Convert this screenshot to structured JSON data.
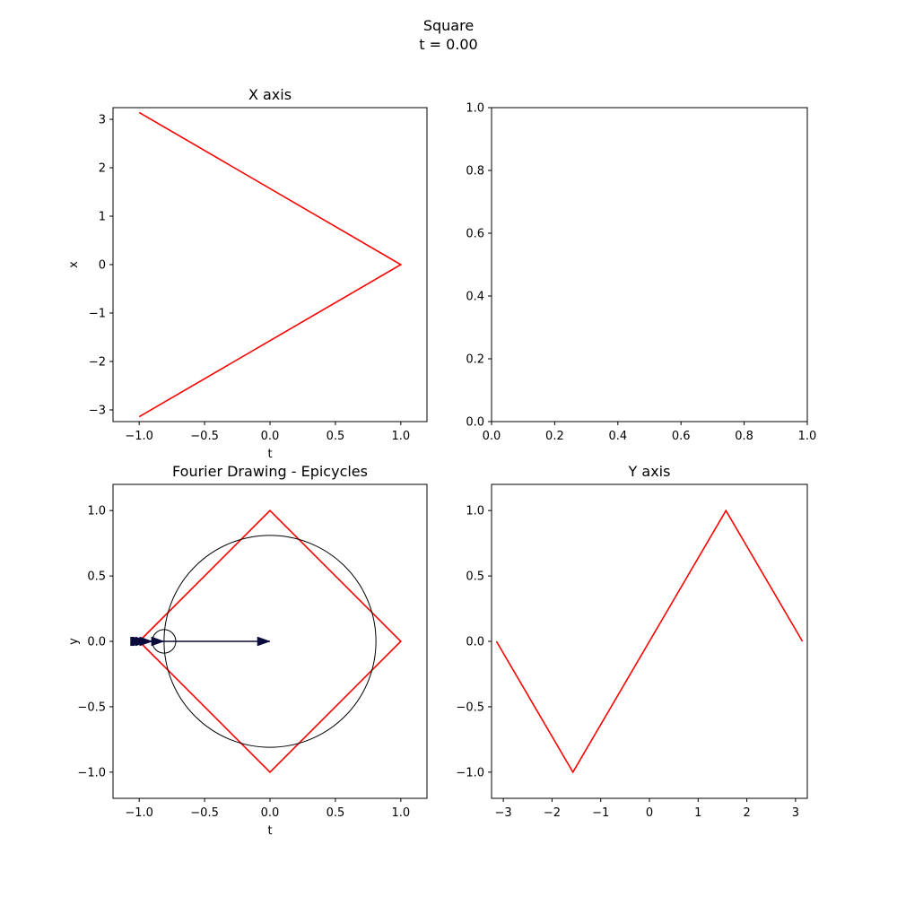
{
  "figure": {
    "title_line1": "Square",
    "title_line2": "t = 0.00"
  },
  "chart_data": [
    {
      "type": "line",
      "title": "X axis",
      "xlabel": "t",
      "ylabel": "x",
      "xlim": [
        -1.2,
        1.2
      ],
      "ylim": [
        -3.2416,
        3.2416
      ],
      "xticks": [
        -1.0,
        -0.5,
        0.0,
        0.5,
        1.0
      ],
      "xtick_labels": [
        "−1.0",
        "−0.5",
        "0.0",
        "0.5",
        "1.0"
      ],
      "yticks": [
        -3,
        -2,
        -1,
        0,
        1,
        2,
        3
      ],
      "ytick_labels": [
        "−3",
        "−2",
        "−1",
        "0",
        "1",
        "2",
        "3"
      ],
      "series": [
        {
          "color": "#ff0000",
          "x": [
            -1.0,
            1.0,
            -1.0
          ],
          "y": [
            3.1416,
            0.0,
            -3.1416
          ]
        }
      ]
    },
    {
      "type": "line",
      "title": "",
      "xlabel": "",
      "ylabel": "",
      "xlim": [
        0.0,
        1.0
      ],
      "ylim": [
        0.0,
        1.0
      ],
      "xticks": [
        0.0,
        0.2,
        0.4,
        0.6,
        0.8,
        1.0
      ],
      "xtick_labels": [
        "0.0",
        "0.2",
        "0.4",
        "0.6",
        "0.8",
        "1.0"
      ],
      "yticks": [
        0.0,
        0.2,
        0.4,
        0.6,
        0.8,
        1.0
      ],
      "ytick_labels": [
        "0.0",
        "0.2",
        "0.4",
        "0.6",
        "0.8",
        "1.0"
      ],
      "series": []
    },
    {
      "type": "line",
      "title": "Fourier Drawing - Epicycles",
      "xlabel": "t",
      "ylabel": "y",
      "xlim": [
        -1.2,
        1.2
      ],
      "ylim": [
        -1.2,
        1.2
      ],
      "xticks": [
        -1.0,
        -0.5,
        0.0,
        0.5,
        1.0
      ],
      "xtick_labels": [
        "−1.0",
        "−0.5",
        "0.0",
        "0.5",
        "1.0"
      ],
      "yticks": [
        -1.0,
        -0.5,
        0.0,
        0.5,
        1.0
      ],
      "ytick_labels": [
        "−1.0",
        "−0.5",
        "0.0",
        "0.5",
        "1.0"
      ],
      "series": [
        {
          "color": "#ff0000",
          "x": [
            -1.0,
            0.0,
            1.0,
            0.0,
            -1.0
          ],
          "y": [
            0.0,
            1.0,
            0.0,
            -1.0,
            0.0
          ]
        }
      ],
      "epicycles": {
        "color": "#000000",
        "circles": [
          {
            "cx": 0.0,
            "cy": 0.0,
            "r": 0.81
          },
          {
            "cx": -0.81,
            "cy": 0.0,
            "r": 0.09
          }
        ],
        "arrow_color": "#0a0a3c",
        "vectors": [
          {
            "x0": 0.0,
            "y0": 0.0,
            "x1": -0.81,
            "y1": 0.0
          },
          {
            "x0": -0.81,
            "y0": 0.0,
            "x1": -0.9,
            "y1": 0.0
          },
          {
            "x0": -0.9,
            "y0": 0.0,
            "x1": -0.93,
            "y1": 0.0
          },
          {
            "x0": -0.93,
            "y0": 0.0,
            "x1": -0.95,
            "y1": 0.0
          },
          {
            "x0": -0.95,
            "y0": 0.0,
            "x1": -0.96,
            "y1": 0.0
          },
          {
            "x0": -0.96,
            "y0": 0.0,
            "x1": -0.97,
            "y1": 0.0
          },
          {
            "x0": -0.97,
            "y0": 0.0,
            "x1": -0.98,
            "y1": 0.0
          }
        ]
      }
    },
    {
      "type": "line",
      "title": "Y axis",
      "xlabel": "",
      "ylabel": "",
      "xlim": [
        -3.2416,
        3.2416
      ],
      "ylim": [
        -1.2,
        1.2
      ],
      "xticks": [
        -3,
        -2,
        -1,
        0,
        1,
        2,
        3
      ],
      "xtick_labels": [
        "−3",
        "−2",
        "−1",
        "0",
        "1",
        "2",
        "3"
      ],
      "yticks": [
        -1.0,
        -0.5,
        0.0,
        0.5,
        1.0
      ],
      "ytick_labels": [
        "−1.0",
        "−0.5",
        "0.0",
        "0.5",
        "1.0"
      ],
      "series": [
        {
          "color": "#ff0000",
          "x": [
            -3.1416,
            -1.5708,
            1.5708,
            3.1416
          ],
          "y": [
            0.0,
            -1.0,
            1.0,
            0.0
          ]
        }
      ]
    }
  ]
}
